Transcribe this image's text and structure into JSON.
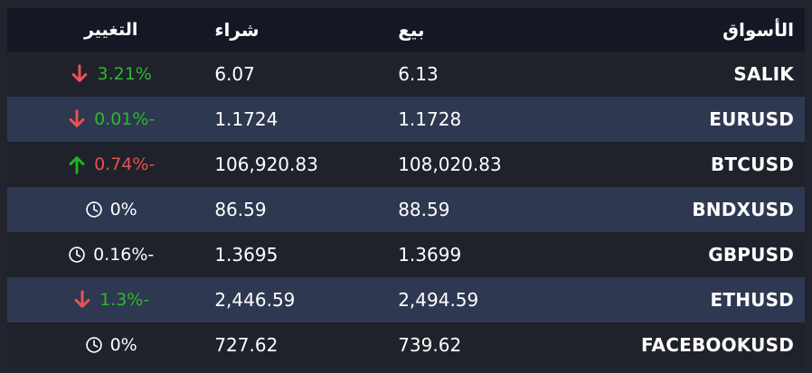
{
  "theme": {
    "page_bg": "#22242d",
    "header_bg": "#151724",
    "row_dark_bg": "#1f222b",
    "row_light_bg": "#2e3850",
    "text_color": "#ffffff",
    "green": "#22b322",
    "green_text": "#2eb82e",
    "red": "#ef5152",
    "red_text": "#e84f4f"
  },
  "table": {
    "headers": {
      "markets": "الأسواق",
      "sell": "بيع",
      "buy": "شراء",
      "change": "التغيير"
    },
    "rows": [
      {
        "market": "SALIK",
        "sell": "6.13",
        "buy": "6.07",
        "change": "3.21%",
        "change_color": "green",
        "icon": "arrow-down",
        "icon_color": "red"
      },
      {
        "market": "EURUSD",
        "sell": "1.1728",
        "buy": "1.1724",
        "change": "0.01%-",
        "change_color": "green",
        "icon": "arrow-down",
        "icon_color": "red"
      },
      {
        "market": "BTCUSD",
        "sell": "108,020.83",
        "buy": "106,920.83",
        "change": "0.74%-",
        "change_color": "red",
        "icon": "arrow-up",
        "icon_color": "green"
      },
      {
        "market": "BNDXUSD",
        "sell": "88.59",
        "buy": "86.59",
        "change": "0%",
        "change_color": "white",
        "icon": "clock",
        "icon_color": "white"
      },
      {
        "market": "GBPUSD",
        "sell": "1.3699",
        "buy": "1.3695",
        "change": "0.16%-",
        "change_color": "white",
        "icon": "clock",
        "icon_color": "white"
      },
      {
        "market": "ETHUSD",
        "sell": "2,494.59",
        "buy": "2,446.59",
        "change": "1.3%-",
        "change_color": "green",
        "icon": "arrow-down",
        "icon_color": "red"
      },
      {
        "market": "FACEBOOKUSD",
        "sell": "739.62",
        "buy": "727.62",
        "change": "0%",
        "change_color": "white",
        "icon": "clock",
        "icon_color": "white"
      }
    ]
  }
}
